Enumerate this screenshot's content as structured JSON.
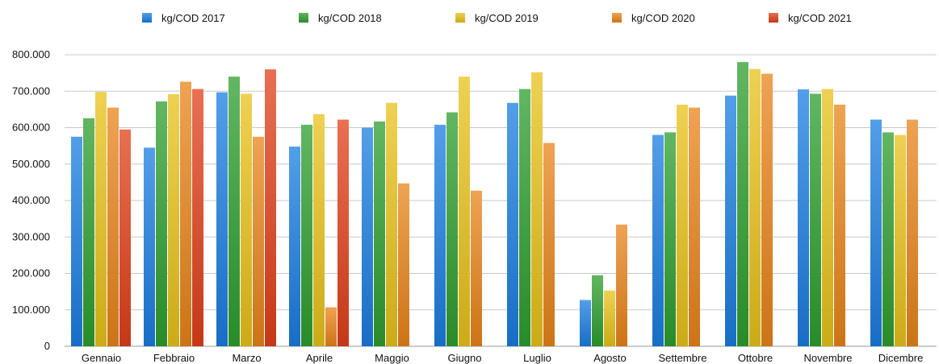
{
  "chart_data": {
    "type": "bar",
    "categories": [
      "Gennaio",
      "Febbraio",
      "Marzo",
      "Aprile",
      "Maggio",
      "Giugno",
      "Luglio",
      "Agosto",
      "Settembre",
      "Ottobre",
      "Novembre",
      "Dicembre"
    ],
    "series": [
      {
        "name": "kg/COD  2017",
        "color": "#1a7de0",
        "values": [
          575000,
          545000,
          697000,
          548000,
          600000,
          608000,
          668000,
          127000,
          580000,
          688000,
          705000,
          622000
        ]
      },
      {
        "name": "kg/COD  2018",
        "color": "#2e9e2e",
        "values": [
          626000,
          672000,
          740000,
          608000,
          617000,
          642000,
          706000,
          195000,
          587000,
          780000,
          693000,
          587000
        ]
      },
      {
        "name": "kg/COD  2019",
        "color": "#e8c21a",
        "values": [
          698000,
          692000,
          693000,
          637000,
          668000,
          740000,
          752000,
          153000,
          663000,
          761000,
          706000,
          580000
        ]
      },
      {
        "name": "kg/COD  2020",
        "color": "#e8841a",
        "values": [
          655000,
          726000,
          575000,
          107000,
          447000,
          427000,
          558000,
          334000,
          655000,
          748000,
          663000,
          622000
        ]
      },
      {
        "name": "kg/COD  2021",
        "color": "#e0401a",
        "values": [
          595000,
          706000,
          760000,
          622000,
          null,
          null,
          null,
          null,
          null,
          null,
          null,
          null
        ]
      }
    ],
    "ylim": [
      0,
      800000
    ],
    "yticks": [
      0,
      100000,
      200000,
      300000,
      400000,
      500000,
      600000,
      700000,
      800000
    ],
    "ytick_labels": [
      "0",
      "100.000",
      "200.000",
      "300.000",
      "400.000",
      "500.000",
      "600.000",
      "700.000",
      "800.000"
    ],
    "grid": true,
    "legend_position": "top"
  }
}
